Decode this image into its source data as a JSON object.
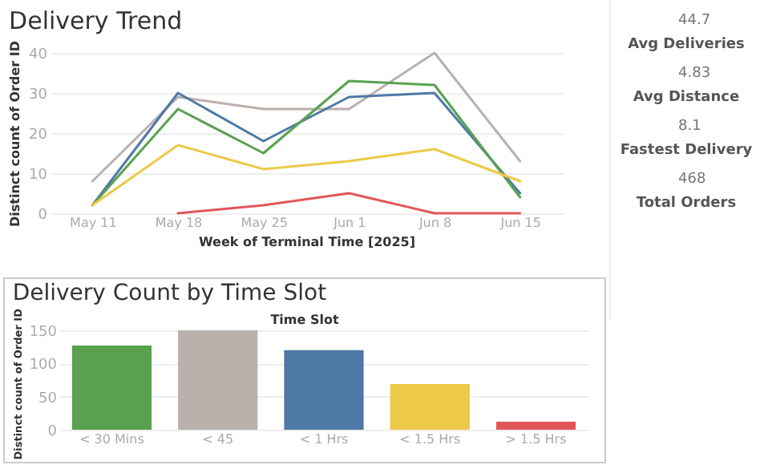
{
  "chart_data": [
    {
      "type": "line",
      "title": "Delivery Trend",
      "xlabel": "Week of Terminal Time [2025]",
      "ylabel": "Distinct count of Order ID",
      "categories": [
        "May 11",
        "May 18",
        "May 25",
        "Jun 1",
        "Jun 8",
        "Jun 15"
      ],
      "ylim": [
        0,
        40
      ],
      "yticks": [
        0,
        10,
        20,
        30,
        40
      ],
      "grid": "y",
      "legend": false,
      "series": [
        {
          "color": "#bab0ac",
          "values": [
            8,
            29,
            26,
            26,
            40,
            13
          ]
        },
        {
          "color": "#4e79a7",
          "values": [
            2,
            30,
            18,
            29,
            30,
            5
          ]
        },
        {
          "color": "#59a14f",
          "values": [
            2,
            26,
            15,
            33,
            32,
            4
          ]
        },
        {
          "color": "#edc948",
          "values": [
            2,
            17,
            11,
            13,
            16,
            8
          ]
        },
        {
          "color": "#e15759",
          "values": [
            null,
            0,
            2,
            5,
            0,
            0
          ]
        }
      ]
    },
    {
      "type": "bar",
      "title": "Delivery Count by Time Slot",
      "xlabel": "Time Slot",
      "ylabel": "Distinct count of Order ID",
      "categories": [
        "< 30 Mins",
        "< 45",
        "< 1 Hrs",
        "< 1.5 Hrs",
        "> 1.5 Hrs"
      ],
      "values": [
        127,
        150,
        120,
        69,
        12
      ],
      "colors": [
        "#59a14f",
        "#bab0ac",
        "#4e79a7",
        "#edc948",
        "#e15759"
      ],
      "ylim": [
        0,
        150
      ],
      "yticks": [
        0,
        50,
        100,
        150
      ],
      "grid": "y",
      "legend": false
    },
    {
      "type": "other",
      "annotations": [
        "44.7",
        "Avg Deliveries",
        "4.83",
        "Avg Distance",
        "8.1",
        "Fastest Delivery",
        "468",
        "Total Orders"
      ]
    }
  ]
}
